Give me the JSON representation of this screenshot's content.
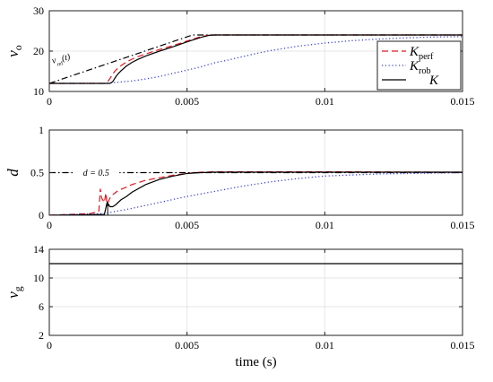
{
  "chart_data": [
    {
      "type": "line",
      "title": "",
      "xlabel": "",
      "ylabel": "v",
      "ylabel_sub": "o",
      "xlim": [
        0,
        0.015
      ],
      "ylim": [
        10,
        30
      ],
      "xticks": [
        0,
        0.005,
        0.01,
        0.015
      ],
      "xtick_labels": [
        "0",
        "0.005",
        "0.01",
        "0.015"
      ],
      "yticks": [
        10,
        20,
        30
      ],
      "ytick_labels": [
        "10",
        "20",
        "30"
      ],
      "grid": true,
      "legend": {
        "placement": "right",
        "entries": [
          {
            "text": "K",
            "sub": "perf"
          },
          {
            "text": "K",
            "sub": "rob"
          },
          {
            "text": "K",
            "sub": ""
          }
        ]
      },
      "annotations": [
        {
          "text": "v",
          "sub": "ref",
          "suffix": "(t)",
          "x": 0.00097,
          "y": 18.7
        }
      ],
      "series": [
        {
          "key": "ref",
          "color": "#000000",
          "dash": "dashdot",
          "x": [
            0,
            0.0052,
            0.015
          ],
          "y": [
            12,
            24,
            24
          ]
        },
        {
          "key": "perf",
          "color": "#e8161f",
          "dash": "dash",
          "x": [
            0,
            0.002,
            0.0021,
            0.0022,
            0.0023,
            0.0024,
            0.0026,
            0.0028,
            0.003,
            0.0032,
            0.0035,
            0.004,
            0.0045,
            0.005,
            0.0055,
            0.0058,
            0.006,
            0.0065,
            0.01,
            0.015
          ],
          "y": [
            12,
            12,
            12.3,
            13.2,
            14.3,
            15.2,
            16.4,
            17.3,
            18.0,
            18.6,
            19.3,
            20.4,
            21.4,
            22.5,
            23.6,
            23.95,
            24,
            24,
            24,
            24
          ]
        },
        {
          "key": "rob",
          "color": "#3a40e6",
          "dash": "dot",
          "x": [
            0,
            0.002,
            0.0025,
            0.003,
            0.0035,
            0.004,
            0.0045,
            0.005,
            0.0055,
            0.006,
            0.0065,
            0.007,
            0.0075,
            0.008,
            0.009,
            0.01,
            0.011,
            0.012,
            0.013,
            0.014,
            0.015
          ],
          "y": [
            12,
            12,
            12.3,
            12.6,
            13.1,
            13.7,
            14.5,
            15.3,
            16.1,
            17.1,
            17.8,
            18.6,
            19.4,
            20.1,
            21.2,
            22.0,
            22.6,
            23.0,
            23.3,
            23.5,
            23.6
          ]
        },
        {
          "key": "K",
          "color": "#000000",
          "dash": "solid",
          "x": [
            0,
            0.0022,
            0.0023,
            0.0024,
            0.0025,
            0.0026,
            0.0028,
            0.003,
            0.0032,
            0.0035,
            0.004,
            0.0045,
            0.005,
            0.0055,
            0.0058,
            0.006,
            0.0065,
            0.01,
            0.015
          ],
          "y": [
            12,
            12,
            12.4,
            13.5,
            14.4,
            15.1,
            16.3,
            17.2,
            17.9,
            18.8,
            20.0,
            21.1,
            22.3,
            23.4,
            23.9,
            24,
            24,
            24,
            24
          ]
        }
      ]
    },
    {
      "type": "line",
      "title": "",
      "xlabel": "",
      "ylabel": "d",
      "ylabel_sub": "",
      "xlim": [
        0,
        0.015
      ],
      "ylim": [
        0,
        1
      ],
      "xticks": [
        0,
        0.005,
        0.01,
        0.015
      ],
      "xtick_labels": [
        "0",
        "0.005",
        "0.01",
        "0.015"
      ],
      "yticks": [
        0,
        0.5,
        1
      ],
      "ytick_labels": [
        "0",
        "0.5",
        "1"
      ],
      "grid": true,
      "annotations": [
        {
          "text": "d = 0.5",
          "sub": "",
          "suffix": "",
          "x": 0.0017,
          "y": 0.5
        }
      ],
      "series": [
        {
          "key": "ref",
          "color": "#000000",
          "dash": "dashdot",
          "x": [
            0,
            0.015
          ],
          "y": [
            0.5,
            0.5
          ]
        },
        {
          "key": "perf",
          "color": "#e8161f",
          "dash": "dash",
          "x": [
            0,
            0.0015,
            0.0018,
            0.00185,
            0.0019,
            0.002,
            0.00205,
            0.0021,
            0.0022,
            0.0023,
            0.0025,
            0.0028,
            0.003,
            0.0035,
            0.004,
            0.0045,
            0.005,
            0.0055,
            0.006,
            0.007,
            0.01,
            0.015
          ],
          "y": [
            0,
            0.02,
            0.05,
            0.31,
            0.2,
            0.15,
            0.26,
            0.13,
            0.2,
            0.24,
            0.29,
            0.33,
            0.36,
            0.41,
            0.44,
            0.47,
            0.49,
            0.505,
            0.51,
            0.51,
            0.51,
            0.505
          ]
        },
        {
          "key": "rob",
          "color": "#3a40e6",
          "dash": "dot",
          "x": [
            0,
            0.002,
            0.003,
            0.004,
            0.005,
            0.006,
            0.007,
            0.008,
            0.009,
            0.01,
            0.012,
            0.015
          ],
          "y": [
            0,
            0.02,
            0.08,
            0.15,
            0.22,
            0.28,
            0.34,
            0.39,
            0.43,
            0.46,
            0.485,
            0.5
          ]
        },
        {
          "key": "K",
          "color": "#000000",
          "dash": "solid",
          "x": [
            0,
            0.002,
            0.0021,
            0.0022,
            0.0023,
            0.0024,
            0.0025,
            0.0026,
            0.0028,
            0.003,
            0.0035,
            0.004,
            0.0045,
            0.005,
            0.0055,
            0.006,
            0.007,
            0.01,
            0.015
          ],
          "y": [
            0,
            0.01,
            0.15,
            0.1,
            0.1,
            0.12,
            0.15,
            0.18,
            0.22,
            0.27,
            0.36,
            0.42,
            0.46,
            0.49,
            0.5,
            0.505,
            0.505,
            0.505,
            0.505
          ]
        }
      ]
    },
    {
      "type": "line",
      "title": "",
      "xlabel": "time (s)",
      "ylabel": "v",
      "ylabel_sub": "g",
      "xlim": [
        0,
        0.015
      ],
      "ylim": [
        2,
        14
      ],
      "xticks": [
        0,
        0.005,
        0.01,
        0.015
      ],
      "xtick_labels": [
        "0",
        "0.005",
        "0.01",
        "0.015"
      ],
      "yticks": [
        2,
        6,
        10,
        14
      ],
      "ytick_labels": [
        "2",
        "6",
        "10",
        "14"
      ],
      "grid": true,
      "annotations": [],
      "series": [
        {
          "key": "K",
          "color": "#000000",
          "dash": "solid",
          "x": [
            0,
            0.015
          ],
          "y": [
            12,
            12
          ]
        }
      ]
    }
  ]
}
